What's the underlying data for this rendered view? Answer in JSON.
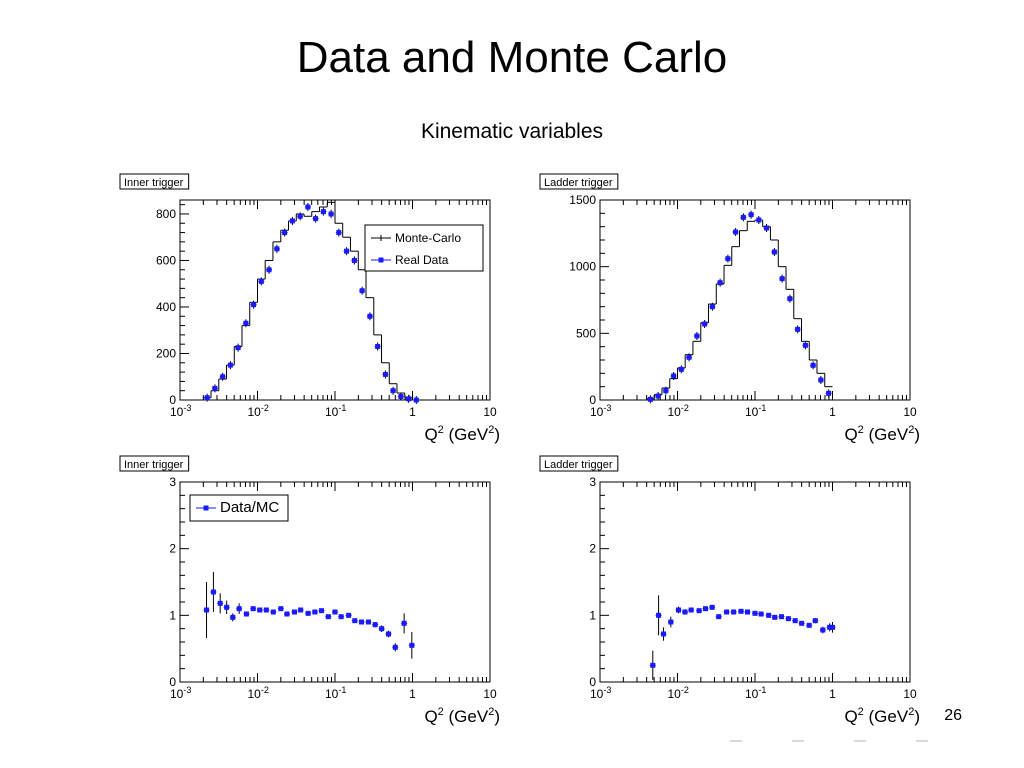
{
  "slide": {
    "title": "Data and Monte Carlo",
    "subtitle": "Kinematic variables",
    "page_number": "26"
  },
  "colors": {
    "mc_line": "#000000",
    "data_marker": "#1a1aff",
    "error_bar": "#000000",
    "frame": "#000000"
  },
  "chart_data": [
    {
      "id": "inner-trigger-q2",
      "type": "histogram",
      "title": "Inner trigger",
      "xlabel": "Q",
      "xlabel_sup": "2",
      "xlabel_unit": " (GeV",
      "xlabel_unit_sup": "2",
      "xlabel_unit_close": ")",
      "xscale": "log",
      "xlim": [
        0.001,
        10
      ],
      "ylim": [
        0,
        860
      ],
      "xticks": [
        0.001,
        0.01,
        0.1,
        1,
        10
      ],
      "xtick_labels": [
        [
          "10",
          "-3"
        ],
        [
          "10",
          "-2"
        ],
        [
          "10",
          "-1"
        ],
        [
          "1",
          ""
        ],
        [
          "10",
          ""
        ]
      ],
      "yticks": [
        0,
        200,
        400,
        600,
        800
      ],
      "ytick_labels": [
        "0",
        "200",
        "400",
        "600",
        "800"
      ],
      "legend": {
        "placement": "top-right",
        "entries": [
          "Monte-Carlo",
          "Real Data"
        ]
      },
      "series": [
        {
          "name": "Monte-Carlo",
          "style": "step",
          "x": [
            0.00224,
            0.00282,
            0.00355,
            0.00447,
            0.00562,
            0.00708,
            0.00891,
            0.0112,
            0.0141,
            0.0178,
            0.0224,
            0.0282,
            0.0355,
            0.0447,
            0.0562,
            0.0708,
            0.0891,
            0.112,
            0.141,
            0.178,
            0.224,
            0.282,
            0.355,
            0.447,
            0.562,
            0.708,
            0.891,
            1.12
          ],
          "y": [
            10,
            40,
            90,
            150,
            230,
            320,
            420,
            520,
            600,
            680,
            730,
            770,
            800,
            790,
            810,
            830,
            850,
            760,
            700,
            640,
            560,
            440,
            280,
            160,
            70,
            30,
            10,
            0
          ]
        },
        {
          "name": "Real Data",
          "style": "points",
          "x": [
            0.00224,
            0.00282,
            0.00355,
            0.00447,
            0.00562,
            0.00708,
            0.00891,
            0.0112,
            0.0141,
            0.0178,
            0.0224,
            0.0282,
            0.0355,
            0.0447,
            0.0562,
            0.0708,
            0.0891,
            0.112,
            0.141,
            0.178,
            0.224,
            0.282,
            0.355,
            0.447,
            0.562,
            0.708,
            0.891,
            1.12
          ],
          "y": [
            10,
            50,
            100,
            150,
            225,
            330,
            410,
            510,
            560,
            650,
            720,
            770,
            790,
            830,
            780,
            810,
            800,
            720,
            640,
            600,
            470,
            360,
            230,
            110,
            40,
            15,
            5,
            0
          ]
        }
      ]
    },
    {
      "id": "ladder-trigger-q2",
      "type": "histogram",
      "title": "Ladder trigger",
      "xlabel": "Q",
      "xlabel_sup": "2",
      "xlabel_unit": " (GeV",
      "xlabel_unit_sup": "2",
      "xlabel_unit_close": ")",
      "xscale": "log",
      "xlim": [
        0.001,
        10
      ],
      "ylim": [
        0,
        1500
      ],
      "xticks": [
        0.001,
        0.01,
        0.1,
        1,
        10
      ],
      "xtick_labels": [
        [
          "10",
          "-3"
        ],
        [
          "10",
          "-2"
        ],
        [
          "10",
          "-1"
        ],
        [
          "1",
          ""
        ],
        [
          "10",
          ""
        ]
      ],
      "yticks": [
        0,
        500,
        1000,
        1500
      ],
      "ytick_labels": [
        "0",
        "500",
        "1000",
        "1500"
      ],
      "series": [
        {
          "name": "",
          "style": "step",
          "x": [
            0.00447,
            0.00562,
            0.00708,
            0.00891,
            0.0112,
            0.0141,
            0.0178,
            0.0224,
            0.0282,
            0.0355,
            0.0447,
            0.0562,
            0.0708,
            0.0891,
            0.112,
            0.141,
            0.178,
            0.224,
            0.282,
            0.355,
            0.447,
            0.562,
            0.708,
            0.891
          ],
          "y": [
            10,
            40,
            90,
            160,
            240,
            340,
            440,
            580,
            720,
            870,
            1010,
            1150,
            1270,
            1340,
            1350,
            1300,
            1200,
            1000,
            830,
            610,
            440,
            300,
            200,
            100
          ]
        },
        {
          "name": "",
          "style": "points",
          "x": [
            0.00447,
            0.00562,
            0.00708,
            0.00891,
            0.0112,
            0.0141,
            0.0178,
            0.0224,
            0.0282,
            0.0355,
            0.0447,
            0.0562,
            0.0708,
            0.0891,
            0.112,
            0.141,
            0.178,
            0.224,
            0.282,
            0.355,
            0.447,
            0.562,
            0.708,
            0.891
          ],
          "y": [
            5,
            30,
            70,
            180,
            230,
            320,
            480,
            570,
            700,
            880,
            1060,
            1260,
            1370,
            1390,
            1350,
            1290,
            1110,
            910,
            760,
            530,
            410,
            260,
            150,
            50
          ]
        }
      ]
    },
    {
      "id": "inner-trigger-ratio",
      "type": "scatter",
      "title": "Inner trigger",
      "xlabel": "Q",
      "xlabel_sup": "2",
      "xlabel_unit": " (GeV",
      "xlabel_unit_sup": "2",
      "xlabel_unit_close": ")",
      "xscale": "log",
      "xlim": [
        0.001,
        10
      ],
      "ylim": [
        0,
        3
      ],
      "xticks": [
        0.001,
        0.01,
        0.1,
        1,
        10
      ],
      "xtick_labels": [
        [
          "10",
          "-3"
        ],
        [
          "10",
          "-2"
        ],
        [
          "10",
          "-1"
        ],
        [
          "1",
          ""
        ],
        [
          "10",
          ""
        ]
      ],
      "yticks": [
        0,
        1,
        2,
        3
      ],
      "ytick_labels": [
        "0",
        "1",
        "2",
        "3"
      ],
      "legend": {
        "placement": "top-left",
        "entries": [
          "Data/MC"
        ]
      },
      "series": [
        {
          "name": "Data/MC",
          "style": "points",
          "x": [
            0.0022,
            0.0027,
            0.0033,
            0.004,
            0.0048,
            0.0058,
            0.0072,
            0.0088,
            0.0107,
            0.013,
            0.016,
            0.02,
            0.024,
            0.03,
            0.036,
            0.045,
            0.055,
            0.067,
            0.082,
            0.1,
            0.12,
            0.15,
            0.18,
            0.22,
            0.27,
            0.33,
            0.4,
            0.49,
            0.6,
            0.78,
            0.98
          ],
          "y": [
            1.08,
            1.35,
            1.18,
            1.12,
            0.97,
            1.1,
            1.02,
            1.1,
            1.08,
            1.08,
            1.05,
            1.1,
            1.02,
            1.05,
            1.08,
            1.03,
            1.05,
            1.07,
            0.98,
            1.05,
            0.98,
            1.0,
            0.92,
            0.9,
            0.9,
            0.86,
            0.8,
            0.72,
            0.52,
            0.88,
            0.55
          ],
          "err": [
            0.42,
            0.3,
            0.15,
            0.1,
            0.06,
            0.08,
            0.03,
            0.03,
            0.03,
            0.03,
            0.02,
            0.02,
            0.02,
            0.02,
            0.02,
            0.02,
            0.02,
            0.02,
            0.02,
            0.02,
            0.02,
            0.02,
            0.03,
            0.03,
            0.03,
            0.04,
            0.05,
            0.05,
            0.06,
            0.15,
            0.2
          ]
        }
      ]
    },
    {
      "id": "ladder-trigger-ratio",
      "type": "scatter",
      "title": "Ladder trigger",
      "xlabel": "Q",
      "xlabel_sup": "2",
      "xlabel_unit": " (GeV",
      "xlabel_unit_sup": "2",
      "xlabel_unit_close": ")",
      "xscale": "log",
      "xlim": [
        0.001,
        10
      ],
      "ylim": [
        0,
        3
      ],
      "xticks": [
        0.001,
        0.01,
        0.1,
        1,
        10
      ],
      "xtick_labels": [
        [
          "10",
          "-3"
        ],
        [
          "10",
          "-2"
        ],
        [
          "10",
          "-1"
        ],
        [
          "1",
          ""
        ],
        [
          "10",
          ""
        ]
      ],
      "yticks": [
        0,
        1,
        2,
        3
      ],
      "ytick_labels": [
        "0",
        "1",
        "2",
        "3"
      ],
      "series": [
        {
          "name": "",
          "style": "points",
          "x": [
            0.0048,
            0.0057,
            0.0066,
            0.0082,
            0.0103,
            0.0125,
            0.015,
            0.019,
            0.023,
            0.028,
            0.034,
            0.043,
            0.053,
            0.066,
            0.08,
            0.1,
            0.12,
            0.15,
            0.18,
            0.22,
            0.27,
            0.33,
            0.4,
            0.5,
            0.6,
            0.75,
            0.92,
            1.0
          ],
          "y": [
            0.25,
            1.0,
            0.72,
            0.9,
            1.08,
            1.05,
            1.08,
            1.07,
            1.1,
            1.12,
            0.98,
            1.05,
            1.05,
            1.06,
            1.05,
            1.03,
            1.02,
            1.0,
            0.97,
            0.98,
            0.95,
            0.92,
            0.88,
            0.85,
            0.92,
            0.78,
            0.82,
            0.82
          ],
          "err": [
            0.22,
            0.3,
            0.1,
            0.08,
            0.05,
            0.04,
            0.03,
            0.03,
            0.03,
            0.03,
            0.02,
            0.02,
            0.02,
            0.02,
            0.02,
            0.02,
            0.02,
            0.02,
            0.02,
            0.02,
            0.02,
            0.02,
            0.03,
            0.03,
            0.04,
            0.05,
            0.06,
            0.08
          ]
        }
      ]
    }
  ]
}
